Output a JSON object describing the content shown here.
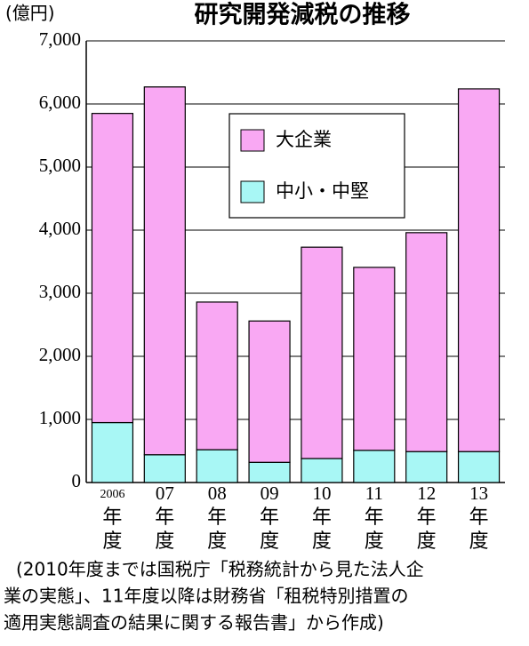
{
  "chart_data": {
    "type": "stacked-bar",
    "title": "研究開発減税の推移",
    "y_label": "(億円)",
    "categories": [
      "2006年度",
      "07年度",
      "08年度",
      "09年度",
      "10年度",
      "11年度",
      "12年度",
      "13年度"
    ],
    "series": [
      {
        "name": "大企業",
        "color": "#f9a8f3",
        "values": [
          4900,
          5830,
          2340,
          2240,
          3350,
          2900,
          3470,
          5750
        ]
      },
      {
        "name": "中小・中堅",
        "color": "#a8f7f5",
        "values": [
          950,
          440,
          520,
          320,
          380,
          510,
          490,
          490
        ]
      }
    ],
    "ylim": [
      0,
      7000
    ],
    "yticks": [
      0,
      {
        "value": 1000,
        "label": "1,000"
      },
      {
        "value": 2000,
        "label": "2,000"
      },
      {
        "value": 3000,
        "label": "3,000"
      },
      {
        "value": 4000,
        "label": "4,000"
      },
      {
        "value": 5000,
        "label": "5,000"
      },
      {
        "value": 6000,
        "label": "6,000"
      },
      {
        "value": 7000,
        "label": "7,000"
      }
    ],
    "grid": true,
    "note": [
      "(2010年度までは国税庁「税務統計から見た法人企",
      "業の実態」、11年度以降は財務省「租税特別措置の",
      "適用実態調査の結果に関する報告書」から作成)"
    ]
  }
}
